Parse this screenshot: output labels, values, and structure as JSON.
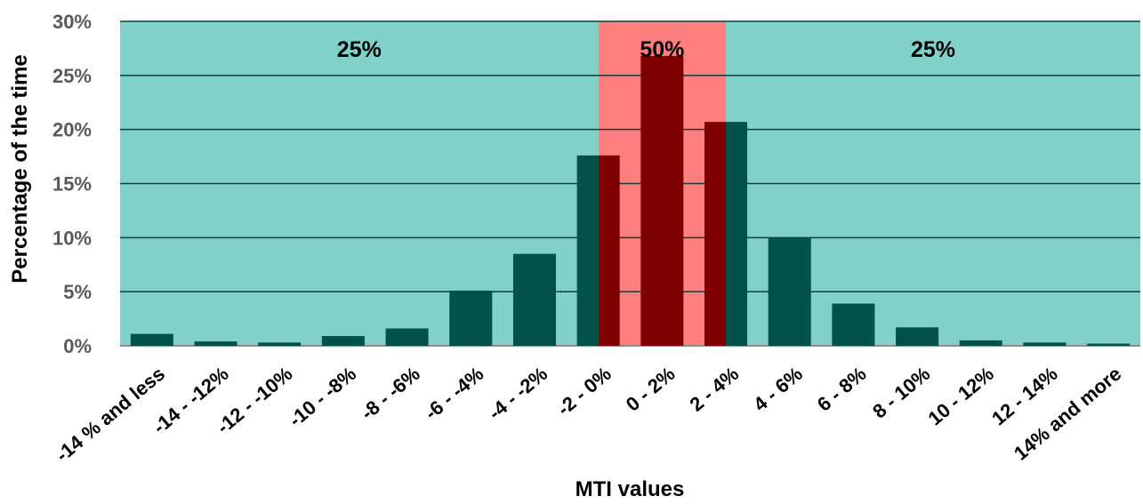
{
  "chart_data": {
    "type": "bar",
    "title": "",
    "xlabel": "MTI values",
    "ylabel": "Percentage of the time",
    "ylim": [
      0,
      30
    ],
    "yticks": [
      "0%",
      "5%",
      "10%",
      "15%",
      "20%",
      "25%",
      "30%"
    ],
    "grid": true,
    "categories": [
      "-14 % and less",
      "-14 - -12%",
      "-12 - -10%",
      "-10 - -8%",
      "-8 - -6%",
      "-6 - -4%",
      "-4 - -2%",
      "-2 - 0%",
      "0 - 2%",
      "2 - 4%",
      "4 - 6%",
      "6 - 8%",
      "8 - 10%",
      "10 - 12%",
      "12 - 14%",
      "14% and more"
    ],
    "values": [
      1.1,
      0.4,
      0.3,
      0.9,
      1.6,
      5.1,
      8.5,
      17.6,
      26.8,
      20.7,
      10.0,
      3.9,
      1.7,
      0.5,
      0.3,
      0.2
    ],
    "bands": [
      {
        "label": "25%",
        "from_category": 0,
        "to_category": 7,
        "color": "#7fd1c9"
      },
      {
        "label": "50%",
        "from_category": 7,
        "to_category": 9,
        "color": "#ff7f7f"
      },
      {
        "label": "25%",
        "from_category": 9,
        "to_category": 15,
        "color": "#7fd1c9"
      }
    ],
    "colors": {
      "bar": "#00524a",
      "bar_highlight": "#7f0000",
      "gridline": "#0b3f3a",
      "axis_line": "#8c8c8c"
    }
  }
}
